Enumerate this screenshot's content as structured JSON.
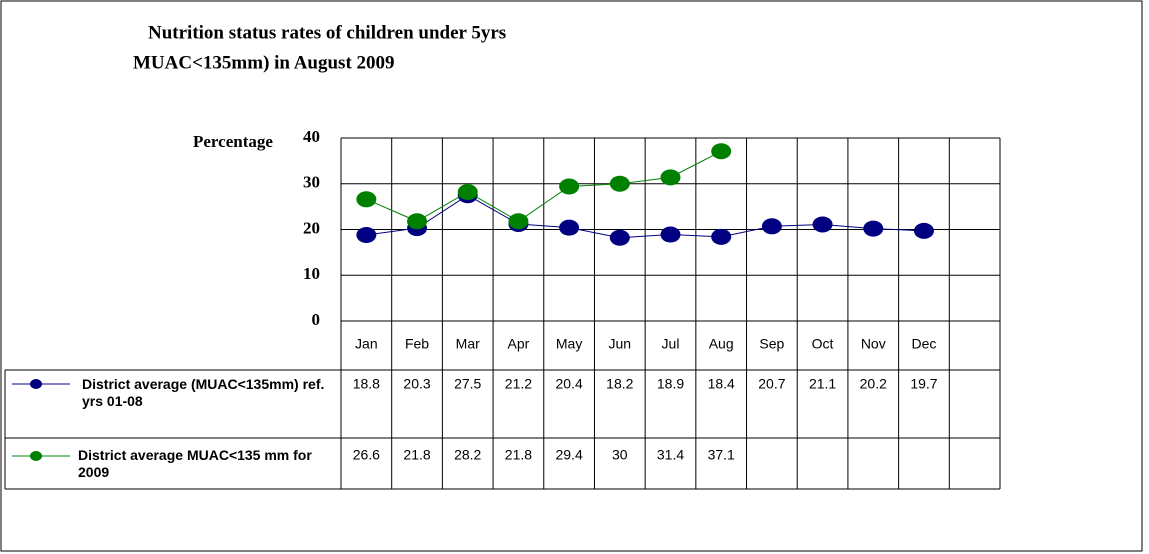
{
  "chart_data": {
    "type": "line",
    "title": "Nutrition status rates of children under 5yrs",
    "subtitle": "MUAC<135mm) in August 2009",
    "y_label": "Percentage",
    "categories": [
      "Jan",
      "Feb",
      "Mar",
      "Apr",
      "May",
      "Jun",
      "Jul",
      "Aug",
      "Sep",
      "Oct",
      "Nov",
      "Dec",
      null
    ],
    "series": [
      {
        "name": "District average (MUAC<135mm) ref. yrs 01-08",
        "color": "#000080",
        "values": [
          18.8,
          20.3,
          27.5,
          21.2,
          20.4,
          18.2,
          18.9,
          18.4,
          20.7,
          21.1,
          20.2,
          19.7,
          null
        ]
      },
      {
        "name": "District average MUAC<135 mm for 2009",
        "color": "#008000",
        "values": [
          26.6,
          21.8,
          28.2,
          21.8,
          29.4,
          30,
          31.4,
          37.1,
          null,
          null,
          null,
          null,
          null
        ]
      }
    ],
    "ylim": [
      0,
      40
    ],
    "yticks": [
      0,
      10,
      20,
      30,
      40
    ],
    "grid": true,
    "data_table": true
  }
}
